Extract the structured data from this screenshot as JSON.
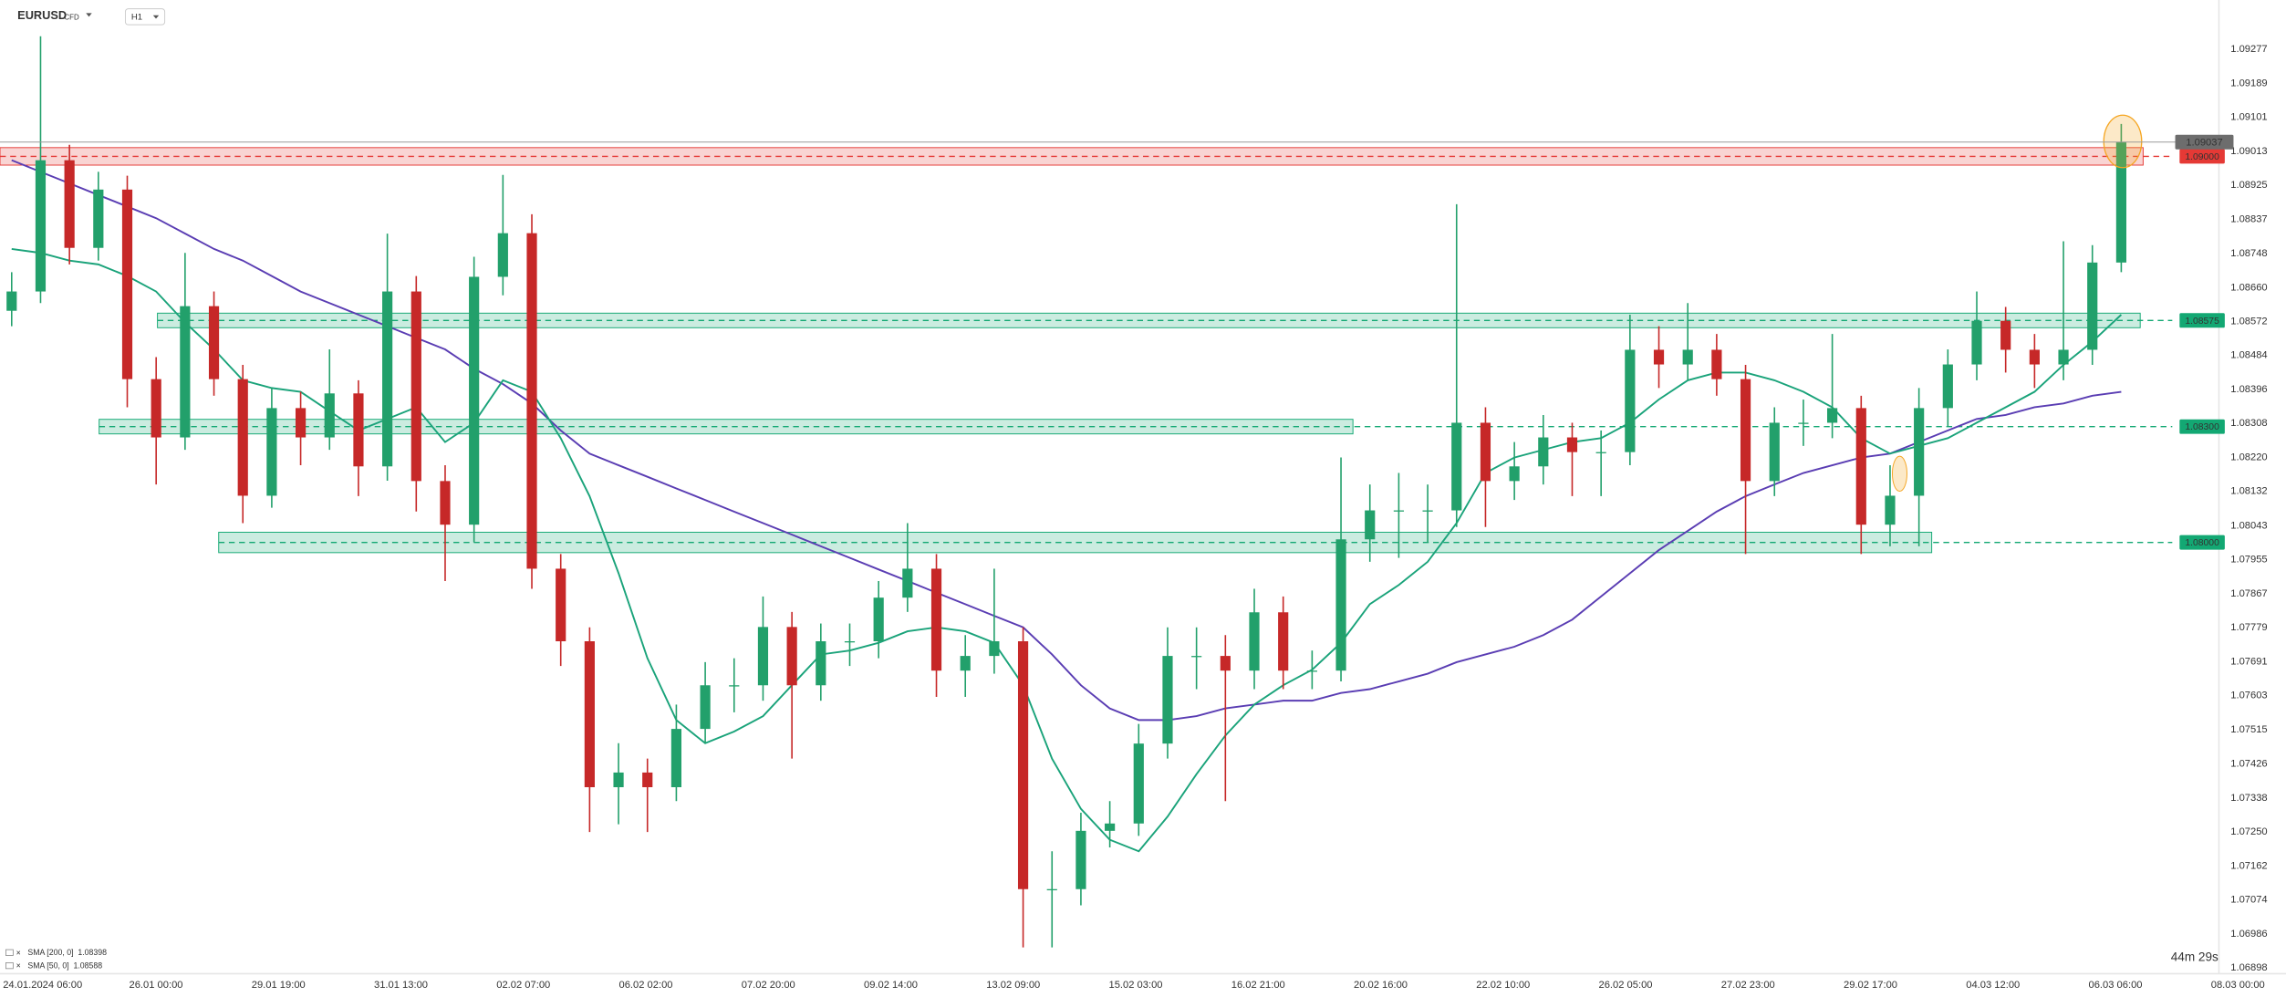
{
  "chart_data": {
    "type": "candlestick",
    "symbol": "EURUSD",
    "instrument_type": "CFD",
    "timeframe": "H1",
    "countdown": "44m 29s",
    "current_price": 1.09037,
    "ylim": [
      1.06883,
      1.09405
    ],
    "yticks": [
      1.09277,
      1.09189,
      1.09101,
      1.09013,
      1.08925,
      1.08837,
      1.08748,
      {
        "value": 1.0866,
        "label": "1.08660"
      },
      1.08572,
      1.08484,
      1.08396,
      1.08308,
      {
        "value": 1.0822,
        "label": "1.08220"
      },
      1.08132,
      1.08043,
      1.07955,
      1.07867,
      1.07779,
      1.07691,
      1.07603,
      1.07515,
      1.07426,
      1.07338,
      {
        "value": 1.0725,
        "label": "1.07250"
      },
      1.07162,
      1.07074,
      1.06986,
      1.06898
    ],
    "x_labels": [
      "24.01.2024 06:00",
      "26.01 00:00",
      "29.01 19:00",
      "31.01 13:00",
      "02.02 07:00",
      "06.02 02:00",
      "07.02 20:00",
      "09.02 14:00",
      "13.02 09:00",
      "15.02 03:00",
      "16.02 21:00",
      "20.02 16:00",
      "22.02 10:00",
      "26.02 05:00",
      "27.02 23:00",
      "29.02 17:00",
      "04.03 12:00",
      "06.03 06:00",
      "08.03 00:00"
    ],
    "up_color": "#22a06b",
    "down_color": "#c62828",
    "ohlc": [
      [
        1.086,
        1.087,
        1.0856,
        1.0865
      ],
      [
        1.0865,
        1.09311,
        1.0862,
        1.0899
      ],
      [
        1.0899,
        1.0903,
        1.0872,
        1.08763
      ],
      [
        1.08763,
        1.0896,
        1.0873,
        1.08914
      ],
      [
        1.08914,
        1.0895,
        1.0835,
        1.08423
      ],
      [
        1.08423,
        1.0848,
        1.0815,
        1.08272
      ],
      [
        1.08272,
        1.0875,
        1.0824,
        1.08612
      ],
      [
        1.08612,
        1.0865,
        1.0838,
        1.08423
      ],
      [
        1.08423,
        1.0846,
        1.0805,
        1.08121
      ],
      [
        1.08121,
        1.084,
        1.0809,
        1.08348
      ],
      [
        1.08348,
        1.0839,
        1.082,
        1.08272
      ],
      [
        1.08272,
        1.085,
        1.0824,
        1.08386
      ],
      [
        1.08386,
        1.0842,
        1.0812,
        1.08197
      ],
      [
        1.08197,
        1.088,
        1.0816,
        1.0865
      ],
      [
        1.0865,
        1.0869,
        1.0808,
        1.08159
      ],
      [
        1.08159,
        1.082,
        1.079,
        1.08046
      ],
      [
        1.08046,
        1.0874,
        1.08,
        1.08688
      ],
      [
        1.08688,
        1.08952,
        1.0864,
        1.08801
      ],
      [
        1.08801,
        1.0885,
        1.0788,
        1.07932
      ],
      [
        1.07932,
        1.0797,
        1.0768,
        1.07744
      ],
      [
        1.07744,
        1.0778,
        1.0725,
        1.07366
      ],
      [
        1.07366,
        1.0748,
        1.0727,
        1.07404
      ],
      [
        1.07404,
        1.0744,
        1.0725,
        1.07366
      ],
      [
        1.07366,
        1.0758,
        1.0733,
        1.07517
      ],
      [
        1.07517,
        1.0769,
        1.0748,
        1.0763
      ],
      [
        1.0763,
        1.077,
        1.0756,
        1.0763
      ],
      [
        1.0763,
        1.0786,
        1.0759,
        1.07781
      ],
      [
        1.07781,
        1.0782,
        1.0744,
        1.0763
      ],
      [
        1.0763,
        1.0779,
        1.0759,
        1.07744
      ],
      [
        1.07744,
        1.0779,
        1.0768,
        1.07744
      ],
      [
        1.07744,
        1.079,
        1.077,
        1.07857
      ],
      [
        1.07857,
        1.0805,
        1.0782,
        1.07932
      ],
      [
        1.07932,
        1.0797,
        1.076,
        1.07668
      ],
      [
        1.07668,
        1.0776,
        1.076,
        1.07706
      ],
      [
        1.07706,
        1.07932,
        1.0766,
        1.07744
      ],
      [
        1.07744,
        1.0778,
        1.06951,
        1.07102
      ],
      [
        1.07102,
        1.072,
        1.06951,
        1.07102
      ],
      [
        1.07102,
        1.073,
        1.0706,
        1.07253
      ],
      [
        1.07253,
        1.0733,
        1.0721,
        1.07272
      ],
      [
        1.07272,
        1.0753,
        1.0724,
        1.07479
      ],
      [
        1.07479,
        1.0778,
        1.0744,
        1.07706
      ],
      [
        1.07706,
        1.0778,
        1.0762,
        1.07706
      ],
      [
        1.07706,
        1.0776,
        1.0733,
        1.07668
      ],
      [
        1.07668,
        1.0788,
        1.0762,
        1.07819
      ],
      [
        1.07819,
        1.0786,
        1.0762,
        1.07668
      ],
      [
        1.07668,
        1.0772,
        1.0762,
        1.07668
      ],
      [
        1.07668,
        1.0822,
        1.0764,
        1.08008
      ],
      [
        1.08008,
        1.0815,
        1.0795,
        1.08083
      ],
      [
        1.08083,
        1.0818,
        1.0796,
        1.08083
      ],
      [
        1.08083,
        1.0815,
        1.08,
        1.08083
      ],
      [
        1.08083,
        1.08876,
        1.0804,
        1.0831
      ],
      [
        1.0831,
        1.0835,
        1.0804,
        1.08159
      ],
      [
        1.08159,
        1.0826,
        1.0811,
        1.08197
      ],
      [
        1.08197,
        1.0833,
        1.0815,
        1.08272
      ],
      [
        1.08272,
        1.0831,
        1.0812,
        1.08234
      ],
      [
        1.08234,
        1.0829,
        1.0812,
        1.08234
      ],
      [
        1.08234,
        1.0859,
        1.082,
        1.08499
      ],
      [
        1.08499,
        1.0856,
        1.084,
        1.08461
      ],
      [
        1.08461,
        1.0862,
        1.0842,
        1.08499
      ],
      [
        1.08499,
        1.0854,
        1.0838,
        1.08423
      ],
      [
        1.08423,
        1.0846,
        1.0797,
        1.08159
      ],
      [
        1.08159,
        1.0835,
        1.0812,
        1.0831
      ],
      [
        1.0831,
        1.0837,
        1.0825,
        1.0831
      ],
      [
        1.0831,
        1.0854,
        1.0827,
        1.08348
      ],
      [
        1.08348,
        1.0838,
        1.0797,
        1.08046
      ],
      [
        1.08046,
        1.082,
        1.0799,
        1.08121
      ],
      [
        1.08121,
        1.084,
        1.0799,
        1.08348
      ],
      [
        1.08348,
        1.085,
        1.083,
        1.08461
      ],
      [
        1.08461,
        1.0865,
        1.0842,
        1.08574
      ],
      [
        1.08574,
        1.0861,
        1.0844,
        1.08499
      ],
      [
        1.08499,
        1.0854,
        1.084,
        1.08461
      ],
      [
        1.08461,
        1.0878,
        1.0842,
        1.08499
      ],
      [
        1.08499,
        1.0877,
        1.0846,
        1.08725
      ],
      [
        1.08725,
        1.09084,
        1.087,
        1.09037
      ]
    ],
    "series": [
      {
        "name": "SMA [200, 0]",
        "color": "#5a3db3",
        "last": 1.08398,
        "values": [
          1.0899,
          1.0896,
          1.0893,
          1.089,
          1.0887,
          1.0884,
          1.088,
          1.0876,
          1.0873,
          1.0869,
          1.0865,
          1.0862,
          1.0859,
          1.0856,
          1.0853,
          1.085,
          1.0845,
          1.0841,
          1.0836,
          1.0829,
          1.0823,
          1.082,
          1.0817,
          1.0814,
          1.0811,
          1.0808,
          1.0805,
          1.0802,
          1.0799,
          1.0796,
          1.0793,
          1.079,
          1.0787,
          1.0784,
          1.0781,
          1.0778,
          1.0771,
          1.0763,
          1.0757,
          1.0754,
          1.0754,
          1.0755,
          1.0757,
          1.0758,
          1.0759,
          1.0759,
          1.0761,
          1.0762,
          1.0764,
          1.0766,
          1.0769,
          1.0771,
          1.0773,
          1.0776,
          1.078,
          1.0786,
          1.0792,
          1.0798,
          1.0803,
          1.0808,
          1.0812,
          1.0815,
          1.0818,
          1.082,
          1.0822,
          1.0823,
          1.0826,
          1.0829,
          1.0832,
          1.0833,
          1.0835,
          1.0836,
          1.0838,
          1.0839
        ]
      },
      {
        "name": "SMA [50, 0]",
        "color": "#1aa37a",
        "last": 1.08588,
        "values": [
          1.0876,
          1.0875,
          1.0873,
          1.0872,
          1.0869,
          1.0865,
          1.0857,
          1.085,
          1.0842,
          1.084,
          1.0839,
          1.0834,
          1.0829,
          1.0832,
          1.0835,
          1.0826,
          1.0831,
          1.0842,
          1.0839,
          1.0827,
          1.0812,
          1.0792,
          1.077,
          1.0754,
          1.0748,
          1.0751,
          1.0755,
          1.0763,
          1.0771,
          1.0772,
          1.0774,
          1.0777,
          1.0778,
          1.0777,
          1.0774,
          1.0763,
          1.0744,
          1.0731,
          1.0723,
          1.072,
          1.0729,
          1.074,
          1.075,
          1.0758,
          1.0763,
          1.0767,
          1.0774,
          1.0784,
          1.0789,
          1.0795,
          1.0805,
          1.0818,
          1.0822,
          1.0824,
          1.0826,
          1.0827,
          1.0831,
          1.0837,
          1.0842,
          1.0844,
          1.0844,
          1.0842,
          1.0839,
          1.0835,
          1.0827,
          1.0823,
          1.0825,
          1.0827,
          1.0831,
          1.0835,
          1.0839,
          1.0846,
          1.0852,
          1.0859
        ]
      }
    ],
    "levels": [
      {
        "value": 1.09,
        "label": "1.09000",
        "color": "#e53935"
      },
      {
        "value": 1.08575,
        "label": "1.08575",
        "color": "#13a873"
      },
      {
        "value": 1.083,
        "label": "1.08300",
        "color": "#13a873"
      },
      {
        "value": 1.08,
        "label": "1.08000",
        "color": "#13a873"
      }
    ]
  }
}
